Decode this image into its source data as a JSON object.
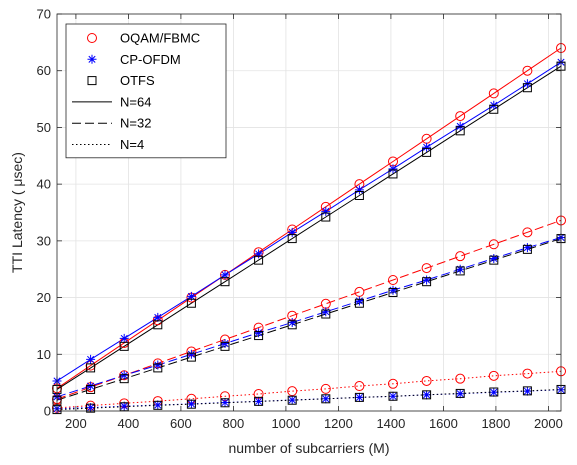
{
  "chart_data": {
    "type": "line",
    "title": "",
    "xlabel": "number of subcarriers (M)",
    "ylabel": "TTI Latency ( μsec)",
    "xlim": [
      128,
      2048
    ],
    "ylim": [
      0,
      70
    ],
    "xticks": [
      200,
      400,
      600,
      800,
      1000,
      1200,
      1400,
      1600,
      1800,
      2000
    ],
    "yticks": [
      0,
      10,
      20,
      30,
      40,
      50,
      60,
      70
    ],
    "grid": true,
    "legend_position": "top-left",
    "x": [
      128,
      256,
      384,
      512,
      640,
      768,
      896,
      1024,
      1152,
      1280,
      1408,
      1536,
      1664,
      1792,
      1920,
      2048
    ],
    "series": [
      {
        "name": "OQAM/FBMC",
        "N": 64,
        "color": "#ff0000",
        "marker": "circle",
        "line": "solid",
        "values": [
          4.0,
          8.0,
          12.0,
          16.0,
          20.0,
          24.0,
          28.0,
          32.0,
          36.0,
          40.0,
          44.0,
          48.0,
          52.0,
          56.0,
          60.0,
          64.0
        ]
      },
      {
        "name": "CP-OFDM",
        "N": 64,
        "color": "#0000ff",
        "marker": "asterisk",
        "line": "solid",
        "values": [
          5.3,
          9.1,
          12.8,
          16.5,
          20.2,
          24.0,
          27.7,
          31.5,
          35.2,
          39.0,
          42.7,
          46.5,
          50.2,
          53.9,
          57.7,
          61.5
        ]
      },
      {
        "name": "OTFS",
        "N": 64,
        "color": "#000000",
        "marker": "square",
        "line": "solid",
        "values": [
          3.8,
          7.6,
          11.4,
          15.2,
          19.0,
          22.8,
          26.6,
          30.4,
          34.2,
          38.0,
          41.8,
          45.6,
          49.4,
          53.2,
          57.0,
          60.8
        ]
      },
      {
        "name": "OQAM/FBMC",
        "N": 32,
        "color": "#ff0000",
        "marker": "circle",
        "line": "dashed",
        "values": [
          2.1,
          4.2,
          6.3,
          8.4,
          10.5,
          12.6,
          14.7,
          16.8,
          18.9,
          21.0,
          23.1,
          25.2,
          27.3,
          29.4,
          31.5,
          33.6
        ]
      },
      {
        "name": "CP-OFDM",
        "N": 32,
        "color": "#0000ff",
        "marker": "asterisk",
        "line": "dashed",
        "values": [
          2.5,
          4.4,
          6.3,
          8.1,
          10.0,
          11.9,
          13.8,
          15.6,
          17.5,
          19.4,
          21.3,
          23.1,
          25.0,
          26.9,
          28.8,
          30.6
        ]
      },
      {
        "name": "OTFS",
        "N": 32,
        "color": "#000000",
        "marker": "square",
        "line": "dashed",
        "values": [
          1.9,
          3.8,
          5.7,
          7.6,
          9.5,
          11.4,
          13.3,
          15.2,
          17.1,
          19.0,
          20.9,
          22.8,
          24.7,
          26.6,
          28.5,
          30.4
        ]
      },
      {
        "name": "OQAM/FBMC",
        "N": 4,
        "color": "#ff0000",
        "marker": "circle",
        "line": "dotted",
        "values": [
          0.55,
          0.95,
          1.35,
          1.75,
          2.15,
          2.6,
          3.0,
          3.5,
          3.9,
          4.4,
          4.8,
          5.3,
          5.7,
          6.2,
          6.6,
          7.0
        ]
      },
      {
        "name": "CP-OFDM",
        "N": 4,
        "color": "#0000ff",
        "marker": "asterisk",
        "line": "dotted",
        "values": [
          0.4,
          0.6,
          0.85,
          1.05,
          1.25,
          1.5,
          1.7,
          1.95,
          2.15,
          2.4,
          2.6,
          2.85,
          3.05,
          3.3,
          3.5,
          3.75
        ]
      },
      {
        "name": "OTFS",
        "N": 4,
        "color": "#000000",
        "marker": "square",
        "line": "dotted",
        "values": [
          0.25,
          0.5,
          0.75,
          1.0,
          1.2,
          1.45,
          1.7,
          1.9,
          2.15,
          2.4,
          2.6,
          2.85,
          3.1,
          3.35,
          3.55,
          3.8
        ]
      }
    ],
    "legend": [
      {
        "label": "OQAM/FBMC",
        "kind": "marker",
        "marker": "circle",
        "color": "#ff0000"
      },
      {
        "label": "CP-OFDM",
        "kind": "marker",
        "marker": "asterisk",
        "color": "#0000ff"
      },
      {
        "label": "OTFS",
        "kind": "marker",
        "marker": "square",
        "color": "#000000"
      },
      {
        "label": "N=64",
        "kind": "line",
        "line": "solid",
        "color": "#000000"
      },
      {
        "label": "N=32",
        "kind": "line",
        "line": "dashed",
        "color": "#000000"
      },
      {
        "label": "N=4",
        "kind": "line",
        "line": "dotted",
        "color": "#000000"
      }
    ]
  }
}
